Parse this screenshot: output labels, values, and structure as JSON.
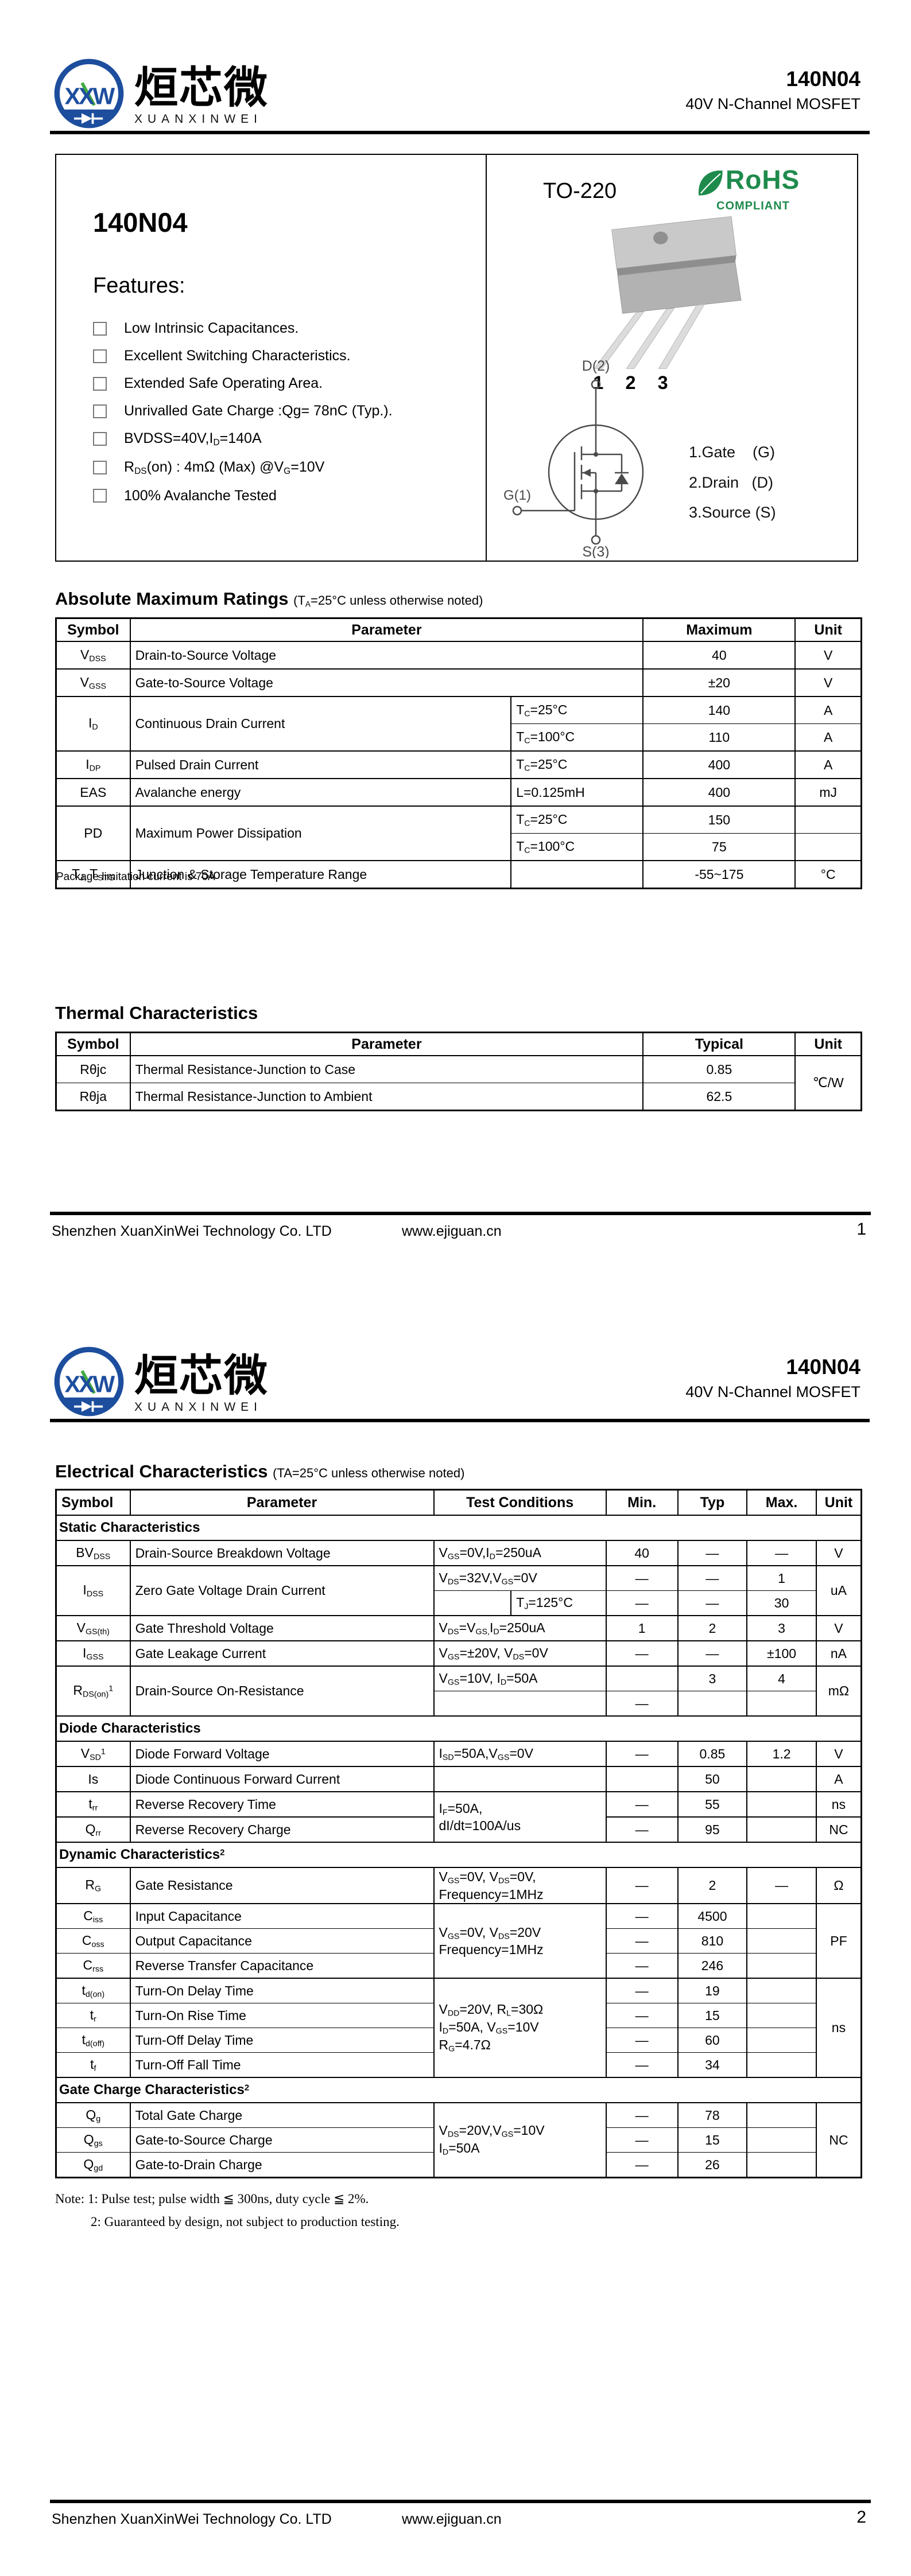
{
  "brand": {
    "monogram": "XXW",
    "cn_name": "烜芯微",
    "en_name": "XUANXINWEI",
    "blue": "#1d4e9e",
    "green": "#3faa3f"
  },
  "header": {
    "part_number": "140N04",
    "subtitle": "40V N-Channel MOSFET"
  },
  "page1": {
    "box": {
      "part_title": "140N04",
      "features_heading": "Features:",
      "features": [
        "Low Intrinsic Capacitances.",
        "Excellent Switching Characteristics.",
        "Extended Safe Operating Area.",
        "Unrivalled Gate Charge :Qg= 78nC (Typ.).",
        "BVDSS=40V,I~D~=140A",
        "R~DS~(on) : 4mΩ (Max) @V~G~=10V",
        "100% Avalanche Tested"
      ],
      "package_name": "TO-220",
      "rohs": {
        "title": "RoHS",
        "subtitle": "COMPLIANT",
        "color": "#1e8b4c"
      },
      "lead_numbers": [
        "1",
        "2",
        "3"
      ],
      "schematic": {
        "drain": "D(2)",
        "gate": "G(1)",
        "source": "S(3)"
      },
      "pin_list": [
        "1.Gate    (G)",
        "2.Drain   (D)",
        "3.Source (S)"
      ]
    },
    "abs_max": {
      "title": "Absolute Maximum Ratings",
      "note": "(T~A~=25°C unless otherwise noted)",
      "rows": [
        [
          {
            "t": "Symbol",
            "h": 1
          },
          {
            "t": "Parameter",
            "h": 1,
            "cs": 2
          },
          {
            "t": "Maximum",
            "h": 1
          },
          {
            "t": "Unit",
            "h": 1
          }
        ],
        [
          "V~DSS~",
          {
            "t": "Drain-to-Source Voltage",
            "cs": 2,
            "l": 1
          },
          "40",
          "V"
        ],
        [
          "V~GSS~",
          {
            "t": "Gate-to-Source Voltage",
            "cs": 2,
            "l": 1
          },
          "±20",
          "V"
        ],
        [
          {
            "t": "I~D~",
            "rs": 2
          },
          {
            "t": "Continuous Drain Current",
            "rs": 2,
            "l": 1
          },
          {
            "t": "T~C~=25°C",
            "l": 1
          },
          "140",
          "A"
        ],
        [
          {
            "t": "T~C~=100°C",
            "l": 1,
            "thin": 1
          },
          {
            "t": "110",
            "thin": 1
          },
          {
            "t": "A",
            "thin": 1
          }
        ],
        [
          "I~DP~",
          {
            "t": "Pulsed Drain Current",
            "l": 1
          },
          {
            "t": "T~C~=25°C",
            "l": 1
          },
          "400",
          "A"
        ],
        [
          "EAS",
          {
            "t": "Avalanche energy",
            "l": 1
          },
          {
            "t": "L=0.125mH",
            "l": 1
          },
          "400",
          "mJ"
        ],
        [
          {
            "t": "PD",
            "rs": 2
          },
          {
            "t": "Maximum Power Dissipation",
            "rs": 2,
            "l": 1
          },
          {
            "t": "T~C~=25°C",
            "l": 1
          },
          "150",
          ""
        ],
        [
          {
            "t": "T~C~=100°C",
            "l": 1,
            "thin": 1
          },
          {
            "t": "75",
            "thin": 1
          },
          {
            "t": "",
            "thin": 1
          }
        ],
        [
          {
            "t": "T~J,~ T~STG~"
          },
          {
            "t": "Junction & Storage Temperature Range",
            "l": 1
          },
          {
            "t": "",
            "l": 1
          },
          "-55~175",
          "°C"
        ]
      ],
      "footnote": "Package limitation current is 70A"
    },
    "thermal": {
      "title": "Thermal Characteristics",
      "rows": [
        [
          {
            "t": "Symbol",
            "h": 1
          },
          {
            "t": "Parameter",
            "h": 1
          },
          {
            "t": "Typical",
            "h": 1
          },
          {
            "t": "Unit",
            "h": 1
          }
        ],
        [
          "Rθjc",
          {
            "t": "Thermal Resistance-Junction to Case",
            "l": 1
          },
          "0.85",
          {
            "t": "℃/W",
            "rs": 2
          }
        ],
        [
          {
            "t": "Rθja",
            "thin": 1
          },
          {
            "t": "Thermal Resistance-Junction to Ambient",
            "l": 1,
            "thin": 1
          },
          {
            "t": "62.5",
            "thin": 1
          }
        ]
      ]
    }
  },
  "page2": {
    "elec": {
      "title": "Electrical Characteristics",
      "note": "(TA=25°C unless otherwise noted)",
      "rows": [
        [
          {
            "t": "Symbol",
            "h": 1,
            "l": 1
          },
          {
            "t": "Parameter",
            "h": 1
          },
          {
            "t": "Test Conditions",
            "h": 1,
            "cs": 2
          },
          {
            "t": "Min.",
            "h": 1
          },
          {
            "t": "Typ",
            "h": 1
          },
          {
            "t": "Max.",
            "h": 1
          },
          {
            "t": "Unit",
            "h": 1
          }
        ],
        [
          {
            "t": "Static Characteristics",
            "sec": 1,
            "cs": 8
          }
        ],
        [
          "BV~DSS~",
          {
            "t": "Drain-Source Breakdown Voltage",
            "l": 1
          },
          {
            "t": "V~GS~=0V,I~D~=250uA",
            "cs": 2,
            "l": 1
          },
          "40",
          "—",
          "—",
          "V"
        ],
        [
          {
            "t": "I~DSS~",
            "rs": 2
          },
          {
            "t": "Zero Gate Voltage Drain Current",
            "rs": 2,
            "l": 1
          },
          {
            "t": "V~DS~=32V,V~GS~=0V",
            "cs": 2,
            "l": 1
          },
          "—",
          "—",
          "1",
          {
            "t": "uA",
            "rs": 2
          }
        ],
        [
          {
            "t": "",
            "thin": 1
          },
          {
            "t": "T~J~=125°C",
            "l": 1,
            "thin": 1
          },
          {
            "t": "—",
            "thin": 1
          },
          {
            "t": "—",
            "thin": 1
          },
          {
            "t": "30",
            "thin": 1
          }
        ],
        [
          "V~GS(th)~",
          {
            "t": "Gate Threshold Voltage",
            "l": 1
          },
          {
            "t": "V~DS~=V~GS,~I~D~=250uA",
            "cs": 2,
            "l": 1
          },
          "1",
          "2",
          "3",
          "V"
        ],
        [
          "I~GSS~",
          {
            "t": "Gate Leakage Current",
            "l": 1
          },
          {
            "t": "V~GS~=±20V, V~DS~=0V",
            "cs": 2,
            "l": 1
          },
          "—",
          "—",
          "±100",
          "nA"
        ],
        [
          {
            "t": "R~DS(on)~^1^",
            "rs": 2
          },
          {
            "t": "Drain-Source On-Resistance",
            "rs": 2,
            "l": 1
          },
          {
            "t": "V~GS~=10V, I~D~=50A",
            "cs": 2,
            "l": 1
          },
          "",
          "3",
          "4",
          {
            "t": "mΩ",
            "rs": 2
          }
        ],
        [
          {
            "t": "",
            "cs": 2,
            "thin": 1
          },
          {
            "t": "—",
            "thin": 1
          },
          {
            "t": "",
            "thin": 1
          },
          {
            "t": "",
            "thin": 1
          }
        ],
        [
          {
            "t": "Diode Characteristics",
            "sec": 1,
            "cs": 8
          }
        ],
        [
          "V~SD~^1^",
          {
            "t": "Diode Forward Voltage",
            "l": 1
          },
          {
            "t": "I~SD~=50A,V~GS~=0V",
            "cs": 2,
            "l": 1
          },
          "—",
          "0.85",
          "1.2",
          "V"
        ],
        [
          "Is",
          {
            "t": "Diode Continuous Forward Current",
            "l": 1
          },
          {
            "t": "",
            "cs": 2
          },
          "",
          "50",
          "",
          "A"
        ],
        [
          "t~rr~",
          {
            "t": "Reverse Recovery Time",
            "l": 1
          },
          {
            "t": "I~F~=50A,\ndI/dt=100A/us",
            "cs": 2,
            "rs": 2,
            "l": 1
          },
          "—",
          "55",
          "",
          "ns"
        ],
        [
          "Q~rr~",
          {
            "t": "Reverse Recovery Charge",
            "l": 1
          },
          "—",
          "95",
          "",
          "NC"
        ],
        [
          {
            "t": "Dynamic Characteristics^2^",
            "sec": 1,
            "cs": 8
          }
        ],
        [
          "R~G~",
          {
            "t": "Gate Resistance",
            "l": 1
          },
          {
            "t": "V~GS~=0V, V~DS~=0V,\nFrequency=1MHz",
            "cs": 2,
            "l": 1
          },
          "—",
          "2",
          "—",
          "Ω"
        ],
        [
          "C~iss~",
          {
            "t": "Input Capacitance",
            "l": 1
          },
          {
            "t": "V~GS~=0V, V~DS~=20V\nFrequency=1MHz",
            "cs": 2,
            "rs": 3,
            "l": 1
          },
          "—",
          "4500",
          "",
          {
            "t": "PF",
            "rs": 3
          }
        ],
        [
          {
            "t": "C~oss~",
            "thin": 1
          },
          {
            "t": "Output Capacitance",
            "l": 1,
            "thin": 1
          },
          {
            "t": "—",
            "thin": 1
          },
          {
            "t": "810",
            "thin": 1
          },
          {
            "t": "",
            "thin": 1
          }
        ],
        [
          {
            "t": "C~rss~",
            "thin": 1
          },
          {
            "t": "Reverse Transfer Capacitance",
            "l": 1,
            "thin": 1
          },
          {
            "t": "—",
            "thin": 1
          },
          {
            "t": "246",
            "thin": 1
          },
          {
            "t": "",
            "thin": 1
          }
        ],
        [
          "t~d(on)~",
          {
            "t": "Turn-On Delay Time",
            "l": 1
          },
          {
            "t": "V~DD~=20V, R~L~=30Ω\nI~D~=50A, V~GS~=10V\nR~G~=4.7Ω",
            "cs": 2,
            "rs": 4,
            "l": 1
          },
          "—",
          "19",
          "",
          {
            "t": "ns",
            "rs": 4
          }
        ],
        [
          {
            "t": "t~r~",
            "thin": 1
          },
          {
            "t": "Turn-On Rise Time",
            "l": 1,
            "thin": 1
          },
          {
            "t": "—",
            "thin": 1
          },
          {
            "t": "15",
            "thin": 1
          },
          {
            "t": "",
            "thin": 1
          }
        ],
        [
          {
            "t": "t~d(off)~",
            "thin": 1
          },
          {
            "t": "Turn-Off Delay Time",
            "l": 1,
            "thin": 1
          },
          {
            "t": "—",
            "thin": 1
          },
          {
            "t": "60",
            "thin": 1
          },
          {
            "t": "",
            "thin": 1
          }
        ],
        [
          {
            "t": "t~f~",
            "thin": 1
          },
          {
            "t": "Turn-Off Fall Time",
            "l": 1,
            "thin": 1
          },
          {
            "t": "—",
            "thin": 1
          },
          {
            "t": "34",
            "thin": 1
          },
          {
            "t": "",
            "thin": 1
          }
        ],
        [
          {
            "t": "Gate Charge Characteristics^2^",
            "sec": 1,
            "cs": 8
          }
        ],
        [
          "Q~g~",
          {
            "t": "Total Gate Charge",
            "l": 1
          },
          {
            "t": "V~DS~=20V,V~GS~=10V\nI~D~=50A",
            "cs": 2,
            "rs": 3,
            "l": 1
          },
          "—",
          "78",
          "",
          {
            "t": "NC",
            "rs": 3
          }
        ],
        [
          {
            "t": "Q~gs~",
            "thin": 1
          },
          {
            "t": "Gate-to-Source Charge",
            "l": 1,
            "thin": 1
          },
          {
            "t": "—",
            "thin": 1
          },
          {
            "t": "15",
            "thin": 1
          },
          {
            "t": "",
            "thin": 1
          }
        ],
        [
          {
            "t": "Q~gd~",
            "thin": 1
          },
          {
            "t": "Gate-to-Drain Charge",
            "l": 1,
            "thin": 1
          },
          {
            "t": "—",
            "thin": 1
          },
          {
            "t": "26",
            "thin": 1
          },
          {
            "t": "",
            "thin": 1
          }
        ]
      ]
    },
    "notes": [
      "Note: 1: Pulse test; pulse width ≦ 300ns, duty cycle ≦ 2%.",
      "2: Guaranteed by design, not subject to production testing."
    ]
  },
  "footer": {
    "company": "Shenzhen XuanXinWei Technology Co. LTD",
    "website": "www.ejiguan.cn",
    "page1": "1",
    "page2": "2"
  }
}
